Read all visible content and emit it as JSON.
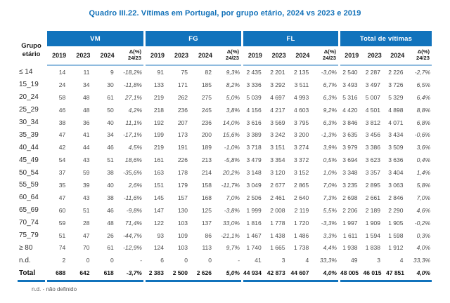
{
  "title": "Quadro III.22. Vítimas em Portugal, por grupo etário, 2024 vs 2023 e 2019",
  "colors": {
    "header_blue": "#1173bc",
    "title_text": "#1070b8",
    "underline_light_blue": "#8fbbdf",
    "bottom_line_blue": "#1173bc"
  },
  "table": {
    "row_header": "Grupo etário",
    "groups": [
      "VM",
      "FG",
      "FL",
      "Total de vítimas"
    ],
    "year_columns": [
      "2019",
      "2023",
      "2024"
    ],
    "delta_column": {
      "line1": "Δ(%)",
      "line2": "24/23"
    },
    "rows": [
      {
        "label": "≤ 14",
        "values": [
          [
            "14",
            "11",
            "9",
            "-18,2%"
          ],
          [
            "91",
            "75",
            "82",
            "9,3%"
          ],
          [
            "2 435",
            "2 201",
            "2 135",
            "-3,0%"
          ],
          [
            "2 540",
            "2 287",
            "2 226",
            "-2,7%"
          ]
        ]
      },
      {
        "label": "15_19",
        "values": [
          [
            "24",
            "34",
            "30",
            "-11,8%"
          ],
          [
            "133",
            "171",
            "185",
            "8,2%"
          ],
          [
            "3 336",
            "3 292",
            "3 511",
            "6,7%"
          ],
          [
            "3 493",
            "3 497",
            "3 726",
            "6,5%"
          ]
        ]
      },
      {
        "label": "20_24",
        "values": [
          [
            "58",
            "48",
            "61",
            "27,1%"
          ],
          [
            "219",
            "262",
            "275",
            "5,0%"
          ],
          [
            "5 039",
            "4 697",
            "4 993",
            "6,3%"
          ],
          [
            "5 316",
            "5 007",
            "5 329",
            "6,4%"
          ]
        ]
      },
      {
        "label": "25_29",
        "values": [
          [
            "46",
            "48",
            "50",
            "4,2%"
          ],
          [
            "218",
            "236",
            "245",
            "3,8%"
          ],
          [
            "4 156",
            "4 217",
            "4 603",
            "9,2%"
          ],
          [
            "4 420",
            "4 501",
            "4 898",
            "8,8%"
          ]
        ]
      },
      {
        "label": "30_34",
        "values": [
          [
            "38",
            "36",
            "40",
            "11,1%"
          ],
          [
            "192",
            "207",
            "236",
            "14,0%"
          ],
          [
            "3 616",
            "3 569",
            "3 795",
            "6,3%"
          ],
          [
            "3 846",
            "3 812",
            "4 071",
            "6,8%"
          ]
        ]
      },
      {
        "label": "35_39",
        "values": [
          [
            "47",
            "41",
            "34",
            "-17,1%"
          ],
          [
            "199",
            "173",
            "200",
            "15,6%"
          ],
          [
            "3 389",
            "3 242",
            "3 200",
            "-1,3%"
          ],
          [
            "3 635",
            "3 456",
            "3 434",
            "-0,6%"
          ]
        ]
      },
      {
        "label": "40_44",
        "values": [
          [
            "42",
            "44",
            "46",
            "4,5%"
          ],
          [
            "219",
            "191",
            "189",
            "-1,0%"
          ],
          [
            "3 718",
            "3 151",
            "3 274",
            "3,9%"
          ],
          [
            "3 979",
            "3 386",
            "3 509",
            "3,6%"
          ]
        ]
      },
      {
        "label": "45_49",
        "values": [
          [
            "54",
            "43",
            "51",
            "18,6%"
          ],
          [
            "161",
            "226",
            "213",
            "-5,8%"
          ],
          [
            "3 479",
            "3 354",
            "3 372",
            "0,5%"
          ],
          [
            "3 694",
            "3 623",
            "3 636",
            "0,4%"
          ]
        ]
      },
      {
        "label": "50_54",
        "values": [
          [
            "37",
            "59",
            "38",
            "-35,6%"
          ],
          [
            "163",
            "178",
            "214",
            "20,2%"
          ],
          [
            "3 148",
            "3 120",
            "3 152",
            "1,0%"
          ],
          [
            "3 348",
            "3 357",
            "3 404",
            "1,4%"
          ]
        ]
      },
      {
        "label": "55_59",
        "values": [
          [
            "35",
            "39",
            "40",
            "2,6%"
          ],
          [
            "151",
            "179",
            "158",
            "-11,7%"
          ],
          [
            "3 049",
            "2 677",
            "2 865",
            "7,0%"
          ],
          [
            "3 235",
            "2 895",
            "3 063",
            "5,8%"
          ]
        ]
      },
      {
        "label": "60_64",
        "values": [
          [
            "47",
            "43",
            "38",
            "-11,6%"
          ],
          [
            "145",
            "157",
            "168",
            "7,0%"
          ],
          [
            "2 506",
            "2 461",
            "2 640",
            "7,3%"
          ],
          [
            "2 698",
            "2 661",
            "2 846",
            "7,0%"
          ]
        ]
      },
      {
        "label": "65_69",
        "values": [
          [
            "60",
            "51",
            "46",
            "-9,8%"
          ],
          [
            "147",
            "130",
            "125",
            "-3,8%"
          ],
          [
            "1 999",
            "2 008",
            "2 119",
            "5,5%"
          ],
          [
            "2 206",
            "2 189",
            "2 290",
            "4,6%"
          ]
        ]
      },
      {
        "label": "70_74",
        "values": [
          [
            "59",
            "28",
            "48",
            "71,4%"
          ],
          [
            "122",
            "103",
            "137",
            "33,0%"
          ],
          [
            "1 816",
            "1 778",
            "1 720",
            "-3,3%"
          ],
          [
            "1 997",
            "1 909",
            "1 905",
            "-0,2%"
          ]
        ]
      },
      {
        "label": "75_79",
        "values": [
          [
            "51",
            "47",
            "26",
            "-44,7%"
          ],
          [
            "93",
            "109",
            "86",
            "-21,1%"
          ],
          [
            "1 467",
            "1 438",
            "1 486",
            "3,3%"
          ],
          [
            "1 611",
            "1 594",
            "1 598",
            "0,3%"
          ]
        ]
      },
      {
        "label": "≥ 80",
        "values": [
          [
            "74",
            "70",
            "61",
            "-12,9%"
          ],
          [
            "124",
            "103",
            "113",
            "9,7%"
          ],
          [
            "1 740",
            "1 665",
            "1 738",
            "4,4%"
          ],
          [
            "1 938",
            "1 838",
            "1 912",
            "4,0%"
          ]
        ]
      },
      {
        "label": "n.d.",
        "values": [
          [
            "2",
            "0",
            "0",
            "-"
          ],
          [
            "6",
            "0",
            "0",
            "-"
          ],
          [
            "41",
            "3",
            "4",
            "33,3%"
          ],
          [
            "49",
            "3",
            "4",
            "33,3%"
          ]
        ]
      },
      {
        "label": "Total",
        "is_total": true,
        "values": [
          [
            "688",
            "642",
            "618",
            "-3,7%"
          ],
          [
            "2 383",
            "2 500",
            "2 626",
            "5,0%"
          ],
          [
            "44 934",
            "42 873",
            "44 607",
            "4,0%"
          ],
          [
            "48 005",
            "46 015",
            "47 851",
            "4,0%"
          ]
        ]
      }
    ],
    "footnote": "n.d. - não definido"
  }
}
